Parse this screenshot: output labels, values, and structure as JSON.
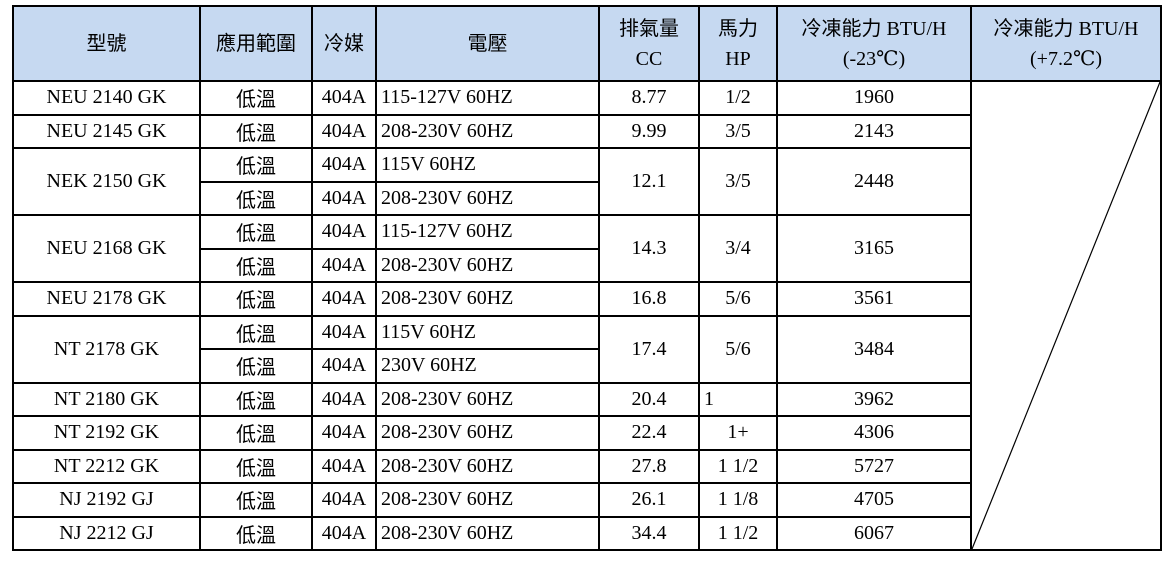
{
  "headers": {
    "model": "型號",
    "application": "應用範圍",
    "refrigerant": "冷媒",
    "voltage": "電壓",
    "displacement_line1": "排氣量",
    "displacement_line2": "CC",
    "horsepower_line1": "馬力",
    "horsepower_line2": "HP",
    "capacity_low_line1": "冷凍能力 BTU/H",
    "capacity_low_line2": "(-23℃)",
    "capacity_high_line1": "冷凍能力 BTU/H",
    "capacity_high_line2": "(+7.2℃)"
  },
  "models": [
    {
      "model": "NEU 2140 GK",
      "cc": "8.77",
      "hp": "1/2",
      "btu": "1960",
      "variants": [
        {
          "application": "低溫",
          "refrigerant": "404A",
          "voltage": "115-127V 60HZ"
        }
      ]
    },
    {
      "model": "NEU 2145 GK",
      "cc": "9.99",
      "hp": "3/5",
      "btu": "2143",
      "variants": [
        {
          "application": "低溫",
          "refrigerant": "404A",
          "voltage": "208-230V 60HZ"
        }
      ]
    },
    {
      "model": "NEK 2150 GK",
      "cc": "12.1",
      "hp": "3/5",
      "btu": "2448",
      "variants": [
        {
          "application": "低溫",
          "refrigerant": "404A",
          "voltage": "115V 60HZ"
        },
        {
          "application": "低溫",
          "refrigerant": "404A",
          "voltage": "208-230V 60HZ"
        }
      ]
    },
    {
      "model": "NEU 2168 GK",
      "cc": "14.3",
      "hp": "3/4",
      "btu": "3165",
      "variants": [
        {
          "application": "低溫",
          "refrigerant": "404A",
          "voltage": "115-127V 60HZ"
        },
        {
          "application": "低溫",
          "refrigerant": "404A",
          "voltage": "208-230V 60HZ"
        }
      ]
    },
    {
      "model": "NEU 2178 GK",
      "cc": "16.8",
      "hp": "5/6",
      "btu": "3561",
      "variants": [
        {
          "application": "低溫",
          "refrigerant": "404A",
          "voltage": "208-230V 60HZ"
        }
      ]
    },
    {
      "model": "NT 2178 GK",
      "cc": "17.4",
      "hp": "5/6",
      "btu": "3484",
      "variants": [
        {
          "application": "低溫",
          "refrigerant": "404A",
          "voltage": "115V 60HZ"
        },
        {
          "application": "低溫",
          "refrigerant": "404A",
          "voltage": "230V 60HZ"
        }
      ]
    },
    {
      "model": "NT 2180 GK",
      "cc": "20.4",
      "hp": "1",
      "hp_align": "left",
      "btu": "3962",
      "variants": [
        {
          "application": "低溫",
          "refrigerant": "404A",
          "voltage": "208-230V 60HZ"
        }
      ]
    },
    {
      "model": "NT 2192 GK",
      "cc": "22.4",
      "hp": "1+",
      "btu": "4306",
      "variants": [
        {
          "application": "低溫",
          "refrigerant": "404A",
          "voltage": "208-230V 60HZ"
        }
      ]
    },
    {
      "model": "NT 2212 GK",
      "cc": "27.8",
      "hp": "1 1/2",
      "btu": "5727",
      "variants": [
        {
          "application": "低溫",
          "refrigerant": "404A",
          "voltage": "208-230V 60HZ"
        }
      ]
    },
    {
      "model": "NJ 2192 GJ",
      "cc": "26.1",
      "hp": "1 1/8",
      "btu": "4705",
      "variants": [
        {
          "application": "低溫",
          "refrigerant": "404A",
          "voltage": "208-230V 60HZ"
        }
      ]
    },
    {
      "model": "NJ 2212 GJ",
      "cc": "34.4",
      "hp": "1 1/2",
      "btu": "6067",
      "variants": [
        {
          "application": "低溫",
          "refrigerant": "404A",
          "voltage": "208-230V 60HZ"
        }
      ]
    }
  ],
  "colors": {
    "header_bg": "#c6d9f1",
    "border": "#000000"
  }
}
